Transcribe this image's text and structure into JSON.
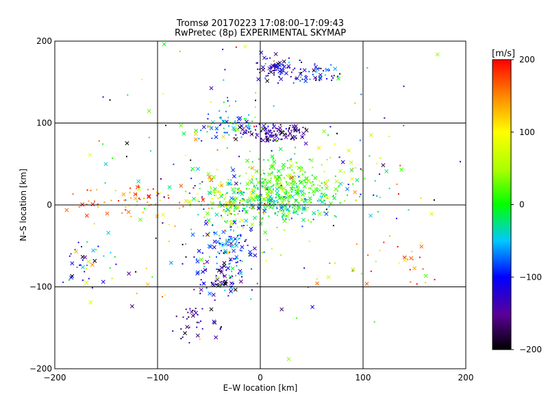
{
  "chart_data": {
    "type": "scatter",
    "title": "Tromsø 20170223 17:08:00–17:09:43",
    "subtitle": "RwPretec (8p) EXPERIMENTAL SKYMAP",
    "xlabel": "E–W location [km]",
    "ylabel": "N–S location [km]",
    "xlim": [
      -200,
      200
    ],
    "ylim": [
      -200,
      200
    ],
    "xticks": [
      -200,
      -100,
      0,
      100,
      200
    ],
    "yticks": [
      -200,
      -100,
      0,
      100,
      200
    ],
    "xtick_labels": [
      "−200",
      "−100",
      "0",
      "100",
      "200"
    ],
    "ytick_labels": [
      "−200",
      "−100",
      "0",
      "100",
      "200"
    ],
    "grid": true,
    "markers": [
      "dot",
      "x"
    ],
    "colorbar": {
      "title": "[m/s]",
      "range": [
        -200,
        200
      ],
      "ticks": [
        200,
        100,
        0,
        -100,
        -200
      ],
      "tick_labels": [
        "200",
        "100",
        "0",
        "−100",
        "−200"
      ],
      "colormap": "rainbow: black (−200) → purple → blue → cyan → green (0) → yellow → orange → red (200)"
    },
    "clusters": [
      {
        "x": 12,
        "y": 168,
        "sx": 10,
        "sy": 8,
        "v": -140,
        "sv": 40,
        "n": 70
      },
      {
        "x": 50,
        "y": 160,
        "sx": 15,
        "sy": 7,
        "v": -120,
        "sv": 60,
        "n": 50
      },
      {
        "x": -30,
        "y": 98,
        "sx": 15,
        "sy": 7,
        "v": -60,
        "sv": 50,
        "n": 70
      },
      {
        "x": 12,
        "y": 88,
        "sx": 16,
        "sy": 6,
        "v": -165,
        "sv": 25,
        "n": 110
      },
      {
        "x": 25,
        "y": 25,
        "sx": 22,
        "sy": 18,
        "v": 20,
        "sv": 25,
        "n": 230
      },
      {
        "x": 20,
        "y": 5,
        "sx": 28,
        "sy": 10,
        "v": -20,
        "sv": 30,
        "n": 180
      },
      {
        "x": -30,
        "y": 5,
        "sx": 22,
        "sy": 16,
        "v": 40,
        "sv": 70,
        "n": 170
      },
      {
        "x": -130,
        "y": 5,
        "sx": 40,
        "sy": 10,
        "v": 165,
        "sv": 30,
        "n": 70
      },
      {
        "x": -30,
        "y": -50,
        "sx": 12,
        "sy": 18,
        "v": -90,
        "sv": 40,
        "n": 90
      },
      {
        "x": -45,
        "y": -90,
        "sx": 15,
        "sy": 12,
        "v": -130,
        "sv": 50,
        "n": 70
      },
      {
        "x": -65,
        "y": -145,
        "sx": 12,
        "sy": 12,
        "v": -170,
        "sv": 30,
        "n": 35
      },
      {
        "x": -170,
        "y": -70,
        "sx": 25,
        "sy": 18,
        "v": -60,
        "sv": 90,
        "n": 40
      },
      {
        "x": 135,
        "y": -70,
        "sx": 25,
        "sy": 18,
        "v": 160,
        "sv": 60,
        "n": 25
      },
      {
        "x": 100,
        "y": 30,
        "sx": 25,
        "sy": 18,
        "v": 0,
        "sv": 120,
        "n": 40
      },
      {
        "x": -60,
        "y": 20,
        "sx": 60,
        "sy": 90,
        "v": 0,
        "sv": 120,
        "n": 130
      },
      {
        "x": 20,
        "y": 40,
        "sx": 80,
        "sy": 100,
        "v": 0,
        "sv": 100,
        "n": 110
      }
    ]
  }
}
